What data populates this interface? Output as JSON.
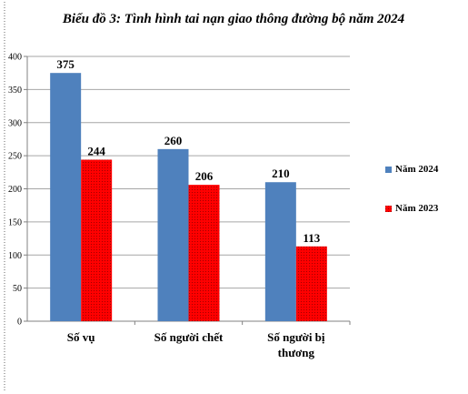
{
  "chart_data": {
    "type": "bar",
    "title": "Biểu đồ 3: Tình hình tai nạn giao thông đường bộ năm 2024",
    "categories": [
      [
        "Số vụ"
      ],
      [
        "Số người chết"
      ],
      [
        "Số người bị",
        "thương"
      ]
    ],
    "series": [
      {
        "name": "Năm 2024",
        "values": [
          375,
          260,
          210
        ],
        "color": "#4f81bd",
        "pattern": "solid"
      },
      {
        "name": "Năm 2023",
        "values": [
          244,
          206,
          113
        ],
        "color": "#ff0000",
        "pattern": "dotted"
      }
    ],
    "ylim": [
      0,
      400
    ],
    "yticks": [
      0,
      50,
      100,
      150,
      200,
      250,
      300,
      350,
      400
    ],
    "grid": true,
    "legend_position": "right"
  }
}
